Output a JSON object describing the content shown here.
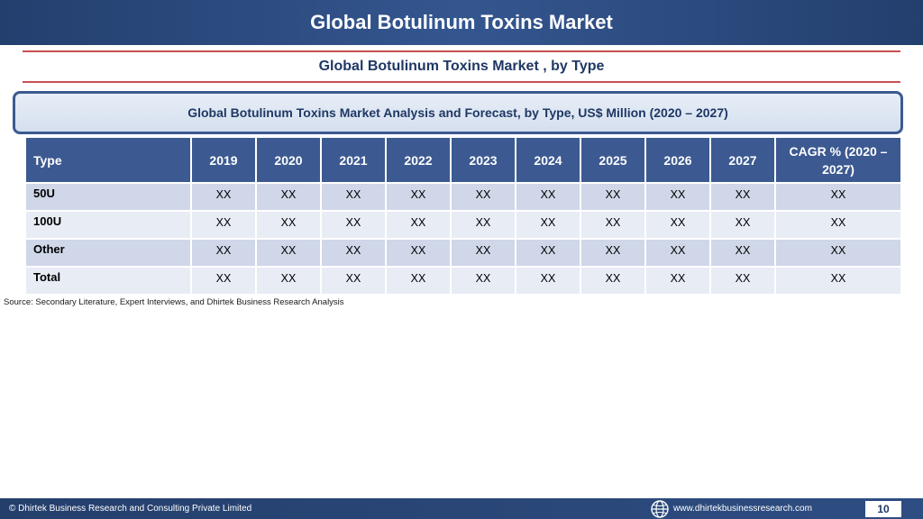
{
  "header": {
    "title": "Global Botulinum Toxins Market"
  },
  "subtitle": "Global Botulinum Toxins Market , by Type",
  "banner": "Global Botulinum Toxins Market  Analysis and Forecast, by Type, US$ Million (2020 – 2027)",
  "table": {
    "headers": [
      "Type",
      "2019",
      "2020",
      "2021",
      "2022",
      "2023",
      "2024",
      "2025",
      "2026",
      "2027",
      "CAGR % (2020 – 2027)"
    ],
    "rows": [
      {
        "label": "50U",
        "values": [
          "XX",
          "XX",
          "XX",
          "XX",
          "XX",
          "XX",
          "XX",
          "XX",
          "XX",
          "XX"
        ]
      },
      {
        "label": "100U",
        "values": [
          "XX",
          "XX",
          "XX",
          "XX",
          "XX",
          "XX",
          "XX",
          "XX",
          "XX",
          "XX"
        ]
      },
      {
        "label": "Other",
        "values": [
          "XX",
          "XX",
          "XX",
          "XX",
          "XX",
          "XX",
          "XX",
          "XX",
          "XX",
          "XX"
        ]
      },
      {
        "label": "Total",
        "values": [
          "XX",
          "XX",
          "XX",
          "XX",
          "XX",
          "XX",
          "XX",
          "XX",
          "XX",
          "XX"
        ]
      }
    ]
  },
  "source": "Source: Secondary Literature, Expert Interviews, and Dhirtek Business Research Analysis",
  "footer": {
    "copyright": "© Dhirtek Business Research and Consulting Private Limited",
    "website": "www.dhirtekbusinessresearch.com",
    "page_number": "10",
    "website_icon": "globe-icon"
  },
  "colors": {
    "header_bg": "#2e4d82",
    "table_header_bg": "#3c5a91",
    "row_odd_bg": "#cfd7e8",
    "row_even_bg": "#e8ecf5",
    "accent_rule": "#c9504f",
    "text_dark_blue": "#1f3864"
  }
}
